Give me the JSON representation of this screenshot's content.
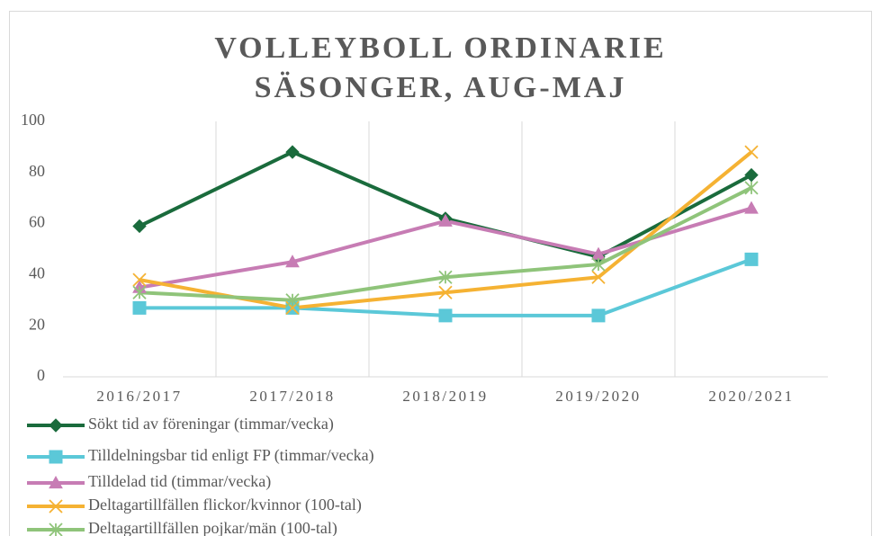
{
  "chart_data": {
    "type": "line",
    "title": "VOLLEYBOLL ORDINARIE\nSÄSONGER, AUG-MAJ",
    "categories": [
      "2016/2017",
      "2017/2018",
      "2018/2019",
      "2019/2020",
      "2020/2021"
    ],
    "series": [
      {
        "name": "Sökt tid av föreningar (timmar/vecka)",
        "color": "#1a6b3c",
        "marker": "diamond",
        "values": [
          59,
          88,
          62,
          47,
          79
        ]
      },
      {
        "name": "Tilldelningsbar tid enligt FP (timmar/vecka)",
        "color": "#5bc8d8",
        "marker": "square",
        "values": [
          27,
          27,
          24,
          24,
          46
        ]
      },
      {
        "name": "Tilldelad tid (timmar/vecka)",
        "color": "#c77cb4",
        "marker": "triangle",
        "values": [
          35,
          45,
          61,
          48,
          66
        ]
      },
      {
        "name": "Deltagartillfällen flickor/kvinnor (100-tal)",
        "color": "#f5b233",
        "marker": "x",
        "values": [
          38,
          27,
          33,
          39,
          88
        ]
      },
      {
        "name": "Deltagartillfällen pojkar/män (100-tal)",
        "color": "#8fc47a",
        "marker": "star",
        "values": [
          33,
          30,
          39,
          44,
          74
        ]
      }
    ],
    "ylim": [
      0,
      100
    ],
    "yticks": [
      0,
      20,
      40,
      60,
      80,
      100
    ],
    "legend": "bottom"
  }
}
